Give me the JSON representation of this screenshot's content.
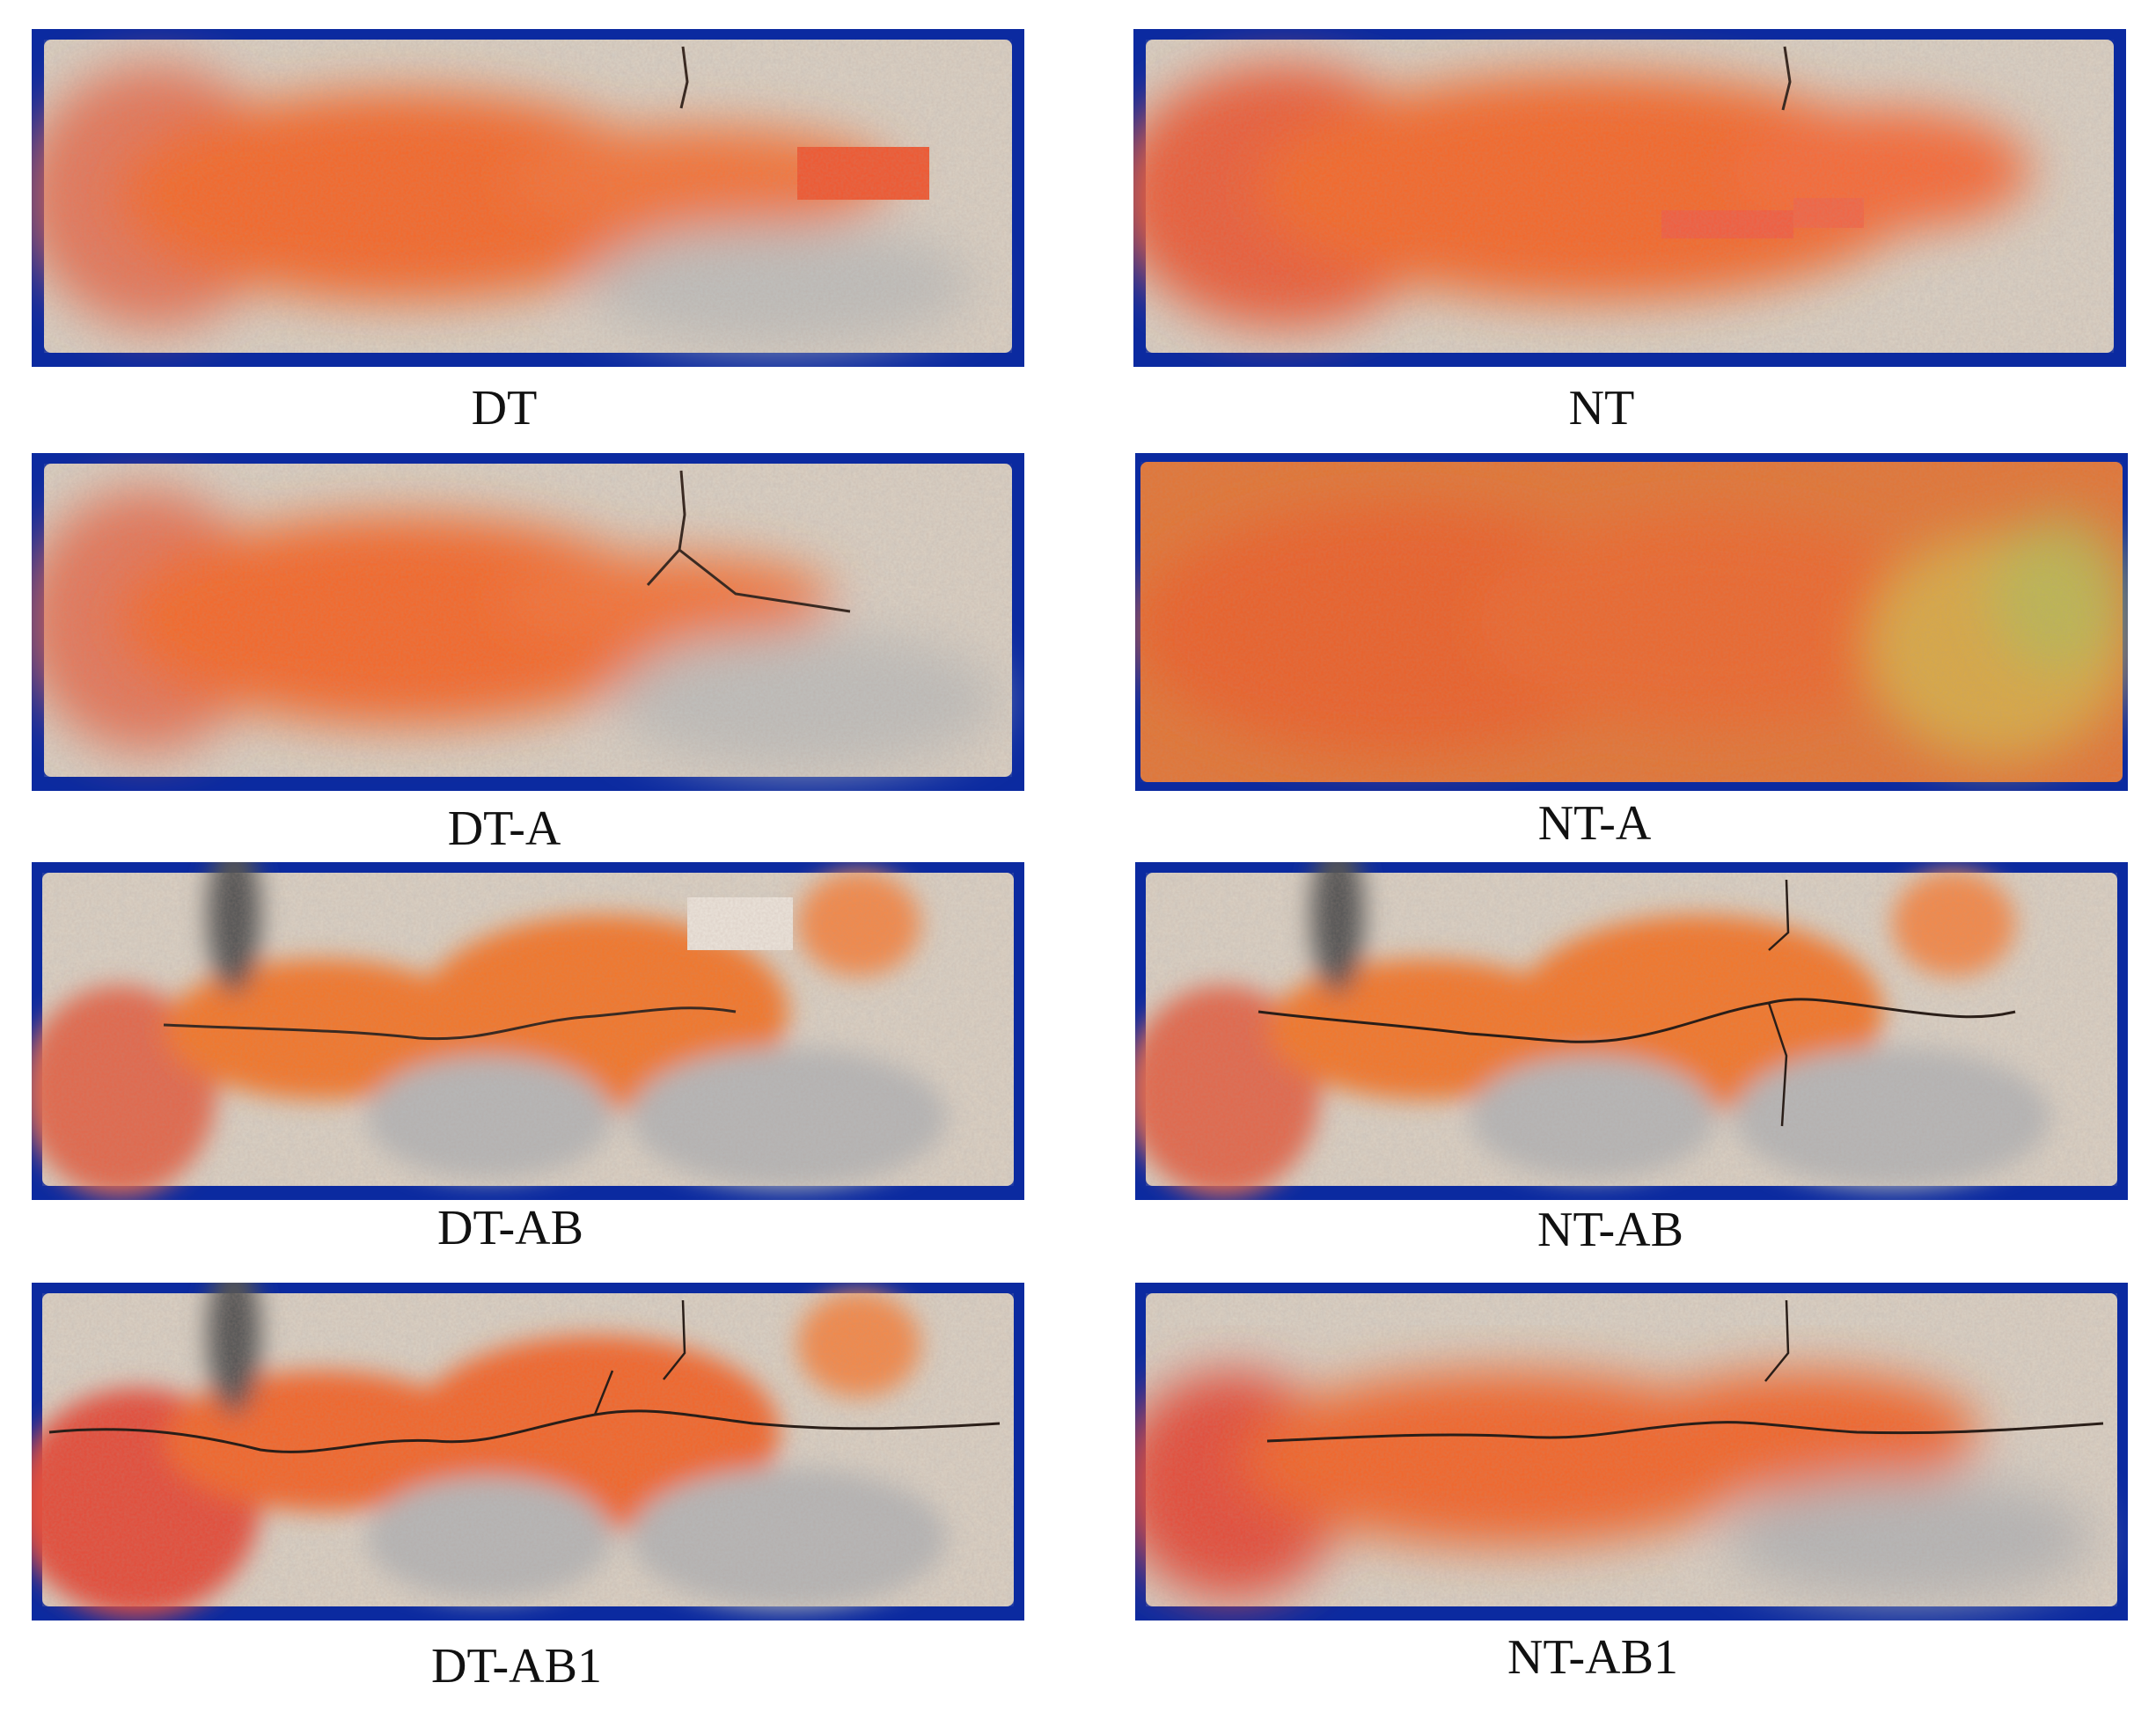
{
  "figure": {
    "panels": [
      {
        "id": "dt",
        "label": "DT"
      },
      {
        "id": "nt",
        "label": "NT"
      },
      {
        "id": "dta",
        "label": "DT-A"
      },
      {
        "id": "nta",
        "label": "NT-A"
      },
      {
        "id": "dtab",
        "label": "DT-AB"
      },
      {
        "id": "ntab",
        "label": "NT-AB"
      },
      {
        "id": "dtab1",
        "label": "DT-AB1"
      },
      {
        "id": "ntab1",
        "label": "NT-AB1"
      }
    ]
  },
  "colors": {
    "backdrop": "#0b2aa0",
    "concrete": "#d9cfc2",
    "concrete_grey": "#b9b8b6",
    "stain_orange": "#f26a2e",
    "stain_red": "#e0443a",
    "crack": "#3a2a22",
    "label_text": "#111111"
  }
}
